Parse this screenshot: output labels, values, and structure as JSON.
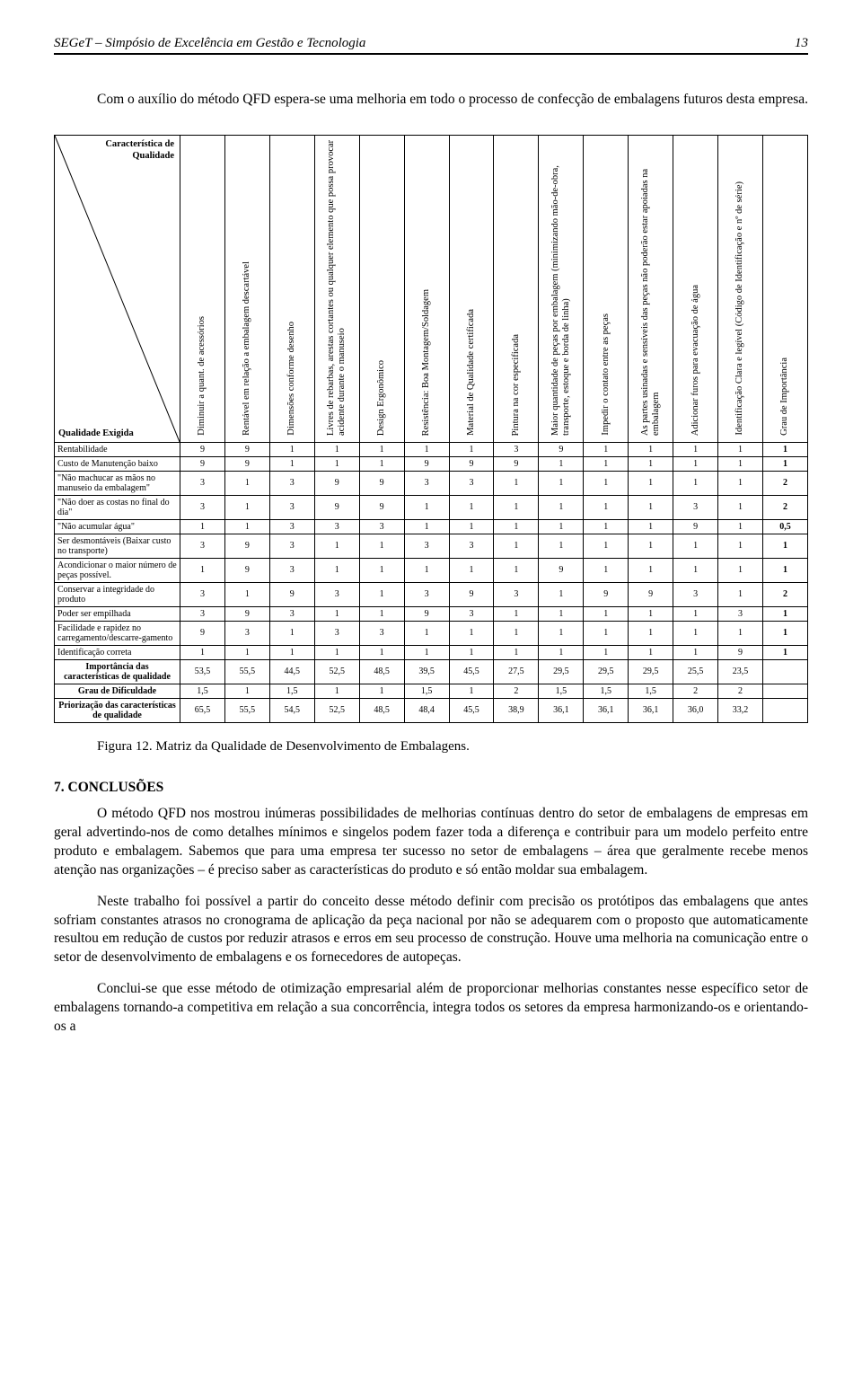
{
  "header": {
    "title": "SEGeT – Simpósio de Excelência em Gestão e Tecnologia",
    "page_number": "13"
  },
  "intro": "Com o auxílio do método QFD espera-se uma melhoria em todo o processo de confecção de embalagens futuros desta empresa.",
  "qfd": {
    "corner_top": "Característica de\nQualidade",
    "corner_bottom": "Qualidade Exigida",
    "columns": [
      "Diminuir a quant. de acessórios",
      "Rentável em relação a embalagem descartável",
      "Dimensões conforme desenho",
      "Livres de rebarbas, arestas cortantes ou qualquer elemento que possa provocar acidente durante o manuseio",
      "Design Ergonômico",
      "Resistência: Boa Montagem/Soldagem",
      "Material de Qualidade certificada",
      "Pintura na cor especificada",
      "Maior quantidade de peças por embalagem (minimizando mão-de-obra, transporte, estoque e borda de linha)",
      "Impedir o contato entre as peças",
      "As partes usinadas e sensíveis das peças não poderão estar apoiadas na embalagem",
      "Adicionar furos para evacuação de água",
      "Identificação Clara e legível (Código de Identificação e nº de série)",
      "Grau de Importância"
    ],
    "rows": [
      {
        "label": "Rentabilidade",
        "vals": [
          "9",
          "9",
          "1",
          "1",
          "1",
          "1",
          "1",
          "3",
          "9",
          "1",
          "1",
          "1",
          "1",
          "1"
        ]
      },
      {
        "label": "Custo de Manutenção baixo",
        "vals": [
          "9",
          "9",
          "1",
          "1",
          "1",
          "9",
          "9",
          "9",
          "1",
          "1",
          "1",
          "1",
          "1",
          "1"
        ]
      },
      {
        "label": "\"Não machucar as mãos no manuseio da embalagem\"",
        "vals": [
          "3",
          "1",
          "3",
          "9",
          "9",
          "3",
          "3",
          "1",
          "1",
          "1",
          "1",
          "1",
          "1",
          "2"
        ]
      },
      {
        "label": "\"Não doer as costas no final do dia\"",
        "vals": [
          "3",
          "1",
          "3",
          "9",
          "9",
          "1",
          "1",
          "1",
          "1",
          "1",
          "1",
          "3",
          "1",
          "2"
        ]
      },
      {
        "label": "\"Não acumular água\"",
        "vals": [
          "1",
          "1",
          "3",
          "3",
          "3",
          "1",
          "1",
          "1",
          "1",
          "1",
          "1",
          "9",
          "1",
          "0,5"
        ]
      },
      {
        "label": "Ser desmontáveis (Baixar custo no transporte)",
        "vals": [
          "3",
          "9",
          "3",
          "1",
          "1",
          "3",
          "3",
          "1",
          "1",
          "1",
          "1",
          "1",
          "1",
          "1"
        ]
      },
      {
        "label": "Acondicionar o maior número de peças possível.",
        "vals": [
          "1",
          "9",
          "3",
          "1",
          "1",
          "1",
          "1",
          "1",
          "9",
          "1",
          "1",
          "1",
          "1",
          "1"
        ]
      },
      {
        "label": "Conservar a integridade do produto",
        "vals": [
          "3",
          "1",
          "9",
          "3",
          "1",
          "3",
          "9",
          "3",
          "1",
          "9",
          "9",
          "3",
          "1",
          "2"
        ]
      },
      {
        "label": "Poder ser empilhada",
        "vals": [
          "3",
          "9",
          "3",
          "1",
          "1",
          "9",
          "3",
          "1",
          "1",
          "1",
          "1",
          "1",
          "3",
          "1"
        ]
      },
      {
        "label": "Facilidade e rapidez no carregamento/descarre-gamento",
        "vals": [
          "9",
          "3",
          "1",
          "3",
          "3",
          "1",
          "1",
          "1",
          "1",
          "1",
          "1",
          "1",
          "1",
          "1"
        ]
      },
      {
        "label": "Identificação correta",
        "vals": [
          "1",
          "1",
          "1",
          "1",
          "1",
          "1",
          "1",
          "1",
          "1",
          "1",
          "1",
          "1",
          "9",
          "1"
        ]
      }
    ],
    "summary": [
      {
        "label": "Importância das características de qualidade",
        "vals": [
          "53,5",
          "55,5",
          "44,5",
          "52,5",
          "48,5",
          "39,5",
          "45,5",
          "27,5",
          "29,5",
          "29,5",
          "29,5",
          "25,5",
          "23,5",
          ""
        ]
      },
      {
        "label": "Grau de Dificuldade",
        "vals": [
          "1,5",
          "1",
          "1,5",
          "1",
          "1",
          "1,5",
          "1",
          "2",
          "1,5",
          "1,5",
          "1,5",
          "2",
          "2",
          ""
        ]
      },
      {
        "label": "Priorização das características de qualidade",
        "vals": [
          "65,5",
          "55,5",
          "54,5",
          "52,5",
          "48,5",
          "48,4",
          "45,5",
          "38,9",
          "36,1",
          "36,1",
          "36,1",
          "36,0",
          "33,2",
          ""
        ]
      }
    ]
  },
  "figure_caption": "Figura 12. Matriz da Qualidade de Desenvolvimento de Embalagens.",
  "conclusions": {
    "heading": "7. CONCLUSÕES",
    "p1": "O método QFD nos mostrou inúmeras possibilidades de melhorias contínuas dentro do setor de embalagens de empresas em geral advertindo-nos de como detalhes mínimos e singelos podem fazer toda a diferença e contribuir para um modelo perfeito entre produto e embalagem. Sabemos que para uma empresa ter sucesso no setor de embalagens – área que geralmente recebe menos atenção nas organizações – é preciso saber as características do produto e só então moldar sua embalagem.",
    "p2": "Neste trabalho foi possível a partir do conceito desse método definir com precisão os protótipos das embalagens que antes sofriam constantes atrasos no cronograma de aplicação da peça nacional por não se adequarem com o proposto que automaticamente resultou em redução de custos por reduzir atrasos e erros em seu processo de construção. Houve uma melhoria na comunicação entre o setor de desenvolvimento de embalagens e os fornecedores de autopeças.",
    "p3": "Conclui-se que esse método de otimização empresarial além de proporcionar melhorias constantes nesse específico setor de embalagens tornando-a competitiva em relação a sua concorrência, integra todos os setores da empresa harmonizando-os e orientando-os a"
  }
}
